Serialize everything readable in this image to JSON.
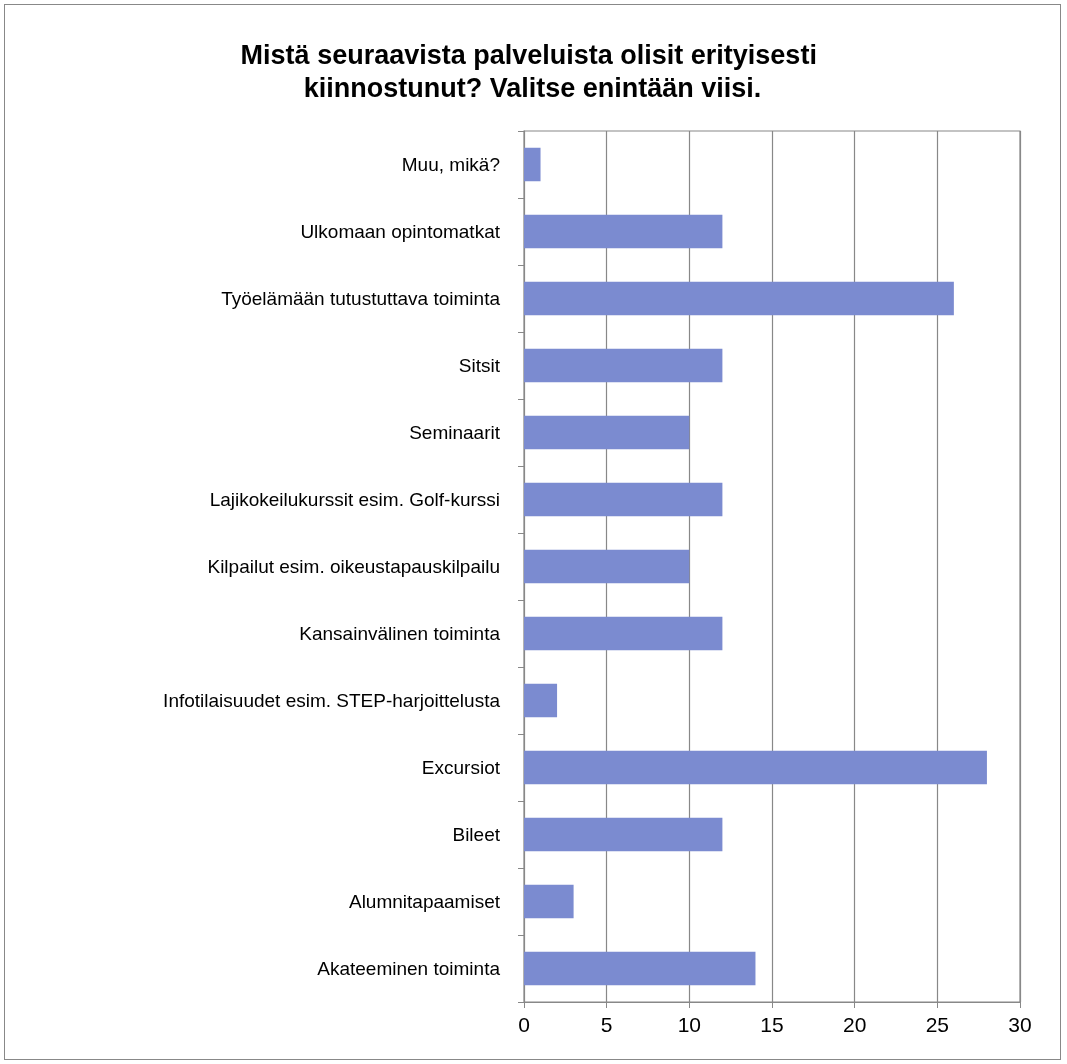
{
  "chart_data": {
    "type": "bar",
    "orientation": "horizontal",
    "title": "Mistä seuraavista palveluista olisit erityisesti kiinnostunut? Valitse enintään viisi.",
    "categories": [
      "Muu, mikä?",
      "Ulkomaan opintomatkat",
      "Työelämään tutustuttava toiminta",
      "Sitsit",
      "Seminaarit",
      "Lajikokeilukurssit esim. Golf-kurssi",
      "Kilpailut esim. oikeustapauskilpailu",
      "Kansainvälinen toiminta",
      "Infotilaisuudet esim. STEP-harjoittelusta",
      "Excursiot",
      "Bileet",
      "Alumnitapaamiset",
      "Akateeminen toiminta"
    ],
    "values": [
      1,
      12,
      26,
      12,
      10,
      12,
      10,
      12,
      2,
      28,
      12,
      3,
      14
    ],
    "color": "#7b8bd0",
    "xlim": [
      0,
      30
    ],
    "xticks": [
      0,
      5,
      10,
      15,
      20,
      25,
      30
    ],
    "grid": "x"
  }
}
